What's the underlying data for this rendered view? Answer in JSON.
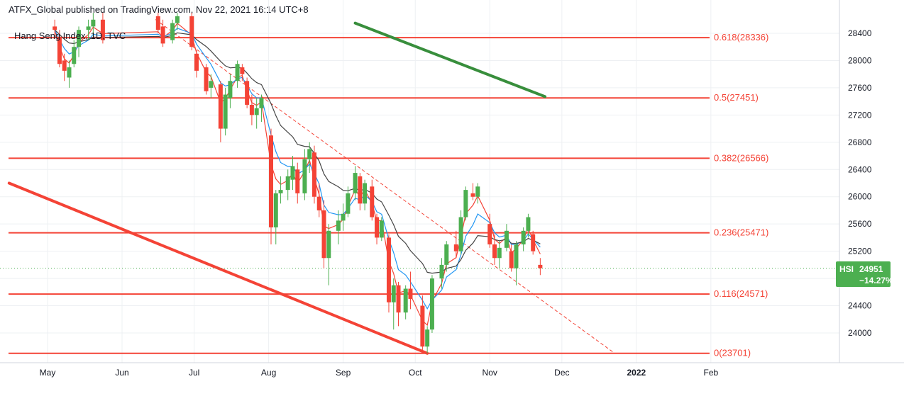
{
  "header": {
    "published": "ATFX_Global published on TradingView.com, Nov 22, 2021 16:14 UTC+8"
  },
  "symbol_label": "Hang Seng Index, 1D, TVC",
  "price_tag": {
    "symbol": "HSI",
    "price": "24951",
    "change": "−14.27%"
  },
  "colors": {
    "up": "#26a69a",
    "candle_up": "#4caf50",
    "down": "#f44336",
    "fib": "#f44336",
    "ema_fast": "#f44336",
    "ema_mid": "#2196f3",
    "ema_slow": "#444444",
    "trend_green": "#388e3c",
    "tag_bg": "#4caf50",
    "grid": "#eef0f3"
  },
  "chart_data": {
    "type": "candlestick",
    "ylim": [
      23650,
      28700
    ],
    "y_ticks": [
      24000,
      24400,
      24800,
      25200,
      25600,
      26000,
      26400,
      26800,
      27200,
      27600,
      28000,
      28400
    ],
    "x_ticks": [
      {
        "label": "May",
        "date": "2021-05-01"
      },
      {
        "label": "Jun",
        "date": "2021-06-01"
      },
      {
        "label": "Jul",
        "date": "2021-07-01"
      },
      {
        "label": "Aug",
        "date": "2021-08-01"
      },
      {
        "label": "Sep",
        "date": "2021-09-01"
      },
      {
        "label": "Oct",
        "date": "2021-10-01"
      },
      {
        "label": "Nov",
        "date": "2021-11-01"
      },
      {
        "label": "Dec",
        "date": "2021-12-01"
      },
      {
        "label": "2022",
        "date": "2022-01-01"
      },
      {
        "label": "Feb",
        "date": "2022-02-01"
      }
    ],
    "fib_levels": [
      {
        "label": "0.618(28336)",
        "value": 28336
      },
      {
        "label": "0.5(27451)",
        "value": 27451
      },
      {
        "label": "0.382(26566)",
        "value": 26566
      },
      {
        "label": "0.236(25471)",
        "value": 25471
      },
      {
        "label": "0.116(24571)",
        "value": 24571
      },
      {
        "label": "0(23701)",
        "value": 23701
      }
    ],
    "last_price": 24951,
    "trendlines": [
      {
        "name": "descending-red-support",
        "style": "solid",
        "color": "#f44336",
        "points": [
          [
            "2021-04-15",
            26200
          ],
          [
            "2021-10-06",
            23701
          ]
        ]
      },
      {
        "name": "descending-dashed",
        "style": "dashed",
        "color": "#f44336",
        "points": [
          [
            "2021-06-15",
            28600
          ],
          [
            "2021-12-23",
            23701
          ]
        ]
      },
      {
        "name": "green-resistance",
        "style": "solid",
        "color": "#388e3c",
        "points": [
          [
            "2021-09-06",
            28550
          ],
          [
            "2021-11-24",
            27470
          ]
        ]
      }
    ],
    "candles": [
      [
        "2021-05-04",
        28500,
        28600,
        28350,
        28450
      ],
      [
        "2021-05-06",
        28350,
        28450,
        27900,
        27950
      ],
      [
        "2021-05-08",
        28000,
        28100,
        27700,
        27850
      ],
      [
        "2021-05-10",
        27750,
        28000,
        27600,
        27900
      ],
      [
        "2021-05-12",
        27950,
        28300,
        27900,
        28200
      ],
      [
        "2021-05-14",
        28200,
        28500,
        28050,
        28450
      ],
      [
        "2021-05-18",
        28450,
        28600,
        28300,
        28500
      ],
      [
        "2021-05-20",
        28500,
        28700,
        28350,
        28600
      ],
      [
        "2021-05-24",
        28600,
        28700,
        28250,
        28300
      ],
      [
        "2021-06-16",
        28650,
        28700,
        28400,
        28450
      ],
      [
        "2021-06-18",
        28500,
        28600,
        28200,
        28250
      ],
      [
        "2021-06-22",
        28300,
        28600,
        28250,
        28550
      ],
      [
        "2021-06-24",
        28550,
        28700,
        28450,
        28650
      ],
      [
        "2021-06-30",
        28650,
        28700,
        28150,
        28200
      ],
      [
        "2021-07-02",
        28100,
        28150,
        27750,
        27850
      ],
      [
        "2021-07-06",
        27900,
        27950,
        27500,
        27550
      ],
      [
        "2021-07-08",
        27600,
        27800,
        27450,
        27700
      ],
      [
        "2021-07-12",
        27650,
        27700,
        26800,
        27000
      ],
      [
        "2021-07-14",
        27000,
        27600,
        26900,
        27500
      ],
      [
        "2021-07-16",
        27450,
        27800,
        27300,
        27700
      ],
      [
        "2021-07-19",
        27700,
        28000,
        27600,
        27950
      ],
      [
        "2021-07-21",
        27900,
        27950,
        27700,
        27800
      ],
      [
        "2021-07-23",
        27700,
        27750,
        27300,
        27350
      ],
      [
        "2021-07-25",
        27350,
        27500,
        27050,
        27200
      ],
      [
        "2021-07-27",
        27200,
        27450,
        27000,
        27300
      ],
      [
        "2021-07-29",
        27300,
        27500,
        27100,
        27450
      ],
      [
        "2021-08-02",
        26900,
        27000,
        25300,
        25550
      ],
      [
        "2021-08-04",
        25550,
        26100,
        25300,
        26050
      ],
      [
        "2021-08-06",
        26050,
        26300,
        25900,
        26100
      ],
      [
        "2021-08-09",
        26100,
        26400,
        25950,
        26300
      ],
      [
        "2021-08-11",
        26250,
        26600,
        26100,
        26450
      ],
      [
        "2021-08-13",
        26400,
        26500,
        25900,
        26050
      ],
      [
        "2021-08-16",
        26050,
        26700,
        25950,
        26550
      ],
      [
        "2021-08-18",
        26550,
        26800,
        26350,
        26700
      ],
      [
        "2021-08-20",
        26650,
        26750,
        25900,
        26000
      ],
      [
        "2021-08-22",
        26000,
        26200,
        25700,
        25800
      ],
      [
        "2021-08-24",
        25800,
        25950,
        24950,
        25100
      ],
      [
        "2021-08-26",
        25100,
        25600,
        24700,
        25500
      ],
      [
        "2021-08-30",
        25500,
        25800,
        25300,
        25650
      ],
      [
        "2021-09-01",
        25650,
        25900,
        25500,
        25750
      ],
      [
        "2021-09-03",
        25750,
        26150,
        25700,
        26050
      ],
      [
        "2021-09-06",
        26050,
        26450,
        25950,
        26350
      ],
      [
        "2021-09-08",
        26300,
        26350,
        25800,
        25900
      ],
      [
        "2021-09-10",
        25900,
        26250,
        25800,
        26200
      ],
      [
        "2021-09-13",
        26150,
        26250,
        25650,
        25700
      ],
      [
        "2021-09-15",
        25700,
        25750,
        25300,
        25400
      ],
      [
        "2021-09-17",
        25400,
        25700,
        25350,
        25650
      ],
      [
        "2021-09-20",
        25400,
        25450,
        24300,
        24450
      ],
      [
        "2021-09-22",
        24450,
        24800,
        24050,
        24700
      ],
      [
        "2021-09-24",
        24700,
        24750,
        24100,
        24300
      ],
      [
        "2021-09-27",
        24300,
        24700,
        24200,
        24650
      ],
      [
        "2021-09-29",
        24650,
        24900,
        24350,
        24500
      ],
      [
        "2021-10-04",
        24400,
        24550,
        23750,
        23800
      ],
      [
        "2021-10-06",
        23800,
        24100,
        23701,
        24050
      ],
      [
        "2021-10-08",
        24050,
        24850,
        24000,
        24800
      ],
      [
        "2021-10-12",
        24800,
        25100,
        24650,
        25000
      ],
      [
        "2021-10-14",
        25000,
        25350,
        24900,
        25300
      ],
      [
        "2021-10-18",
        25300,
        25500,
        25100,
        25200
      ],
      [
        "2021-10-20",
        25200,
        25800,
        25150,
        25700
      ],
      [
        "2021-10-22",
        25700,
        26150,
        25650,
        26100
      ],
      [
        "2021-10-25",
        26050,
        26200,
        25950,
        26000
      ],
      [
        "2021-10-27",
        26000,
        26200,
        25900,
        26150
      ],
      [
        "2021-11-01",
        25600,
        25750,
        25250,
        25300
      ],
      [
        "2021-11-03",
        25300,
        25450,
        25000,
        25100
      ],
      [
        "2021-11-05",
        25100,
        25350,
        24950,
        25250
      ],
      [
        "2021-11-08",
        25250,
        25600,
        25200,
        25500
      ],
      [
        "2021-11-10",
        25200,
        25300,
        24900,
        24950
      ],
      [
        "2021-11-12",
        24950,
        25350,
        24700,
        25300
      ],
      [
        "2021-11-15",
        25300,
        25550,
        25200,
        25500
      ],
      [
        "2021-11-17",
        25500,
        25750,
        25400,
        25700
      ],
      [
        "2021-11-19",
        25450,
        25500,
        25150,
        25200
      ],
      [
        "2021-11-22",
        25000,
        25100,
        24850,
        24951
      ]
    ]
  }
}
